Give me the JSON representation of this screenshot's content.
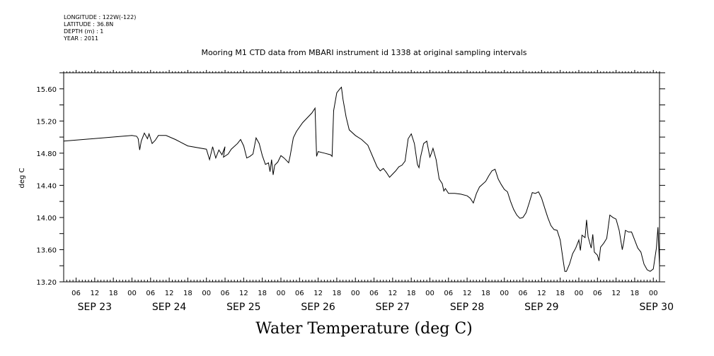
{
  "header": {
    "longitude": "LONGITUDE : 122W(-122)",
    "latitude": "LATITUDE : 36.8N",
    "depth": "DEPTH (m) : 1",
    "year": "YEAR : 2011"
  },
  "footer": {
    "label": "Water Temperature (deg C)"
  },
  "chart_data": {
    "type": "line",
    "title": "Mooring M1 CTD data from MBARI instrument id 1338 at original sampling intervals",
    "xlabel": "",
    "ylabel": "deg C",
    "ylim": [
      13.2,
      15.8
    ],
    "yticks": [
      "13.20",
      "13.60",
      "14.00",
      "14.40",
      "14.80",
      "15.20",
      "15.60"
    ],
    "xlim_hours": [
      0,
      192
    ],
    "x_unit": "hours after 2011-09-23 02:00",
    "hour_ticks": [
      "06",
      "12",
      "18",
      "00",
      "06",
      "12",
      "18",
      "00",
      "06",
      "12",
      "18",
      "00",
      "06",
      "12",
      "18",
      "00",
      "06",
      "12",
      "18",
      "00",
      "06",
      "12",
      "18",
      "00",
      "06",
      "12",
      "18",
      "00",
      "06",
      "12",
      "18",
      "00"
    ],
    "day_labels": [
      {
        "label": "SEP 23",
        "day": 23
      },
      {
        "label": "SEP 24",
        "day": 24
      },
      {
        "label": "SEP 25",
        "day": 25
      },
      {
        "label": "SEP 26",
        "day": 26
      },
      {
        "label": "SEP 27",
        "day": 27
      },
      {
        "label": "SEP 28",
        "day": 28
      },
      {
        "label": "SEP 29",
        "day": 29
      },
      {
        "label": "SEP 30",
        "day": 30
      }
    ],
    "series": [
      {
        "values": [
          [
            0,
            14.95
          ],
          [
            22,
            15.02
          ],
          [
            23.5,
            15.01
          ],
          [
            24,
            14.98
          ],
          [
            24.5,
            14.84
          ],
          [
            25,
            14.95
          ],
          [
            26,
            15.05
          ],
          [
            27,
            14.98
          ],
          [
            27.5,
            15.04
          ],
          [
            28.5,
            14.92
          ],
          [
            29.5,
            14.96
          ],
          [
            30.5,
            15.02
          ],
          [
            33,
            15.02
          ],
          [
            36,
            14.97
          ],
          [
            40,
            14.89
          ],
          [
            46,
            14.85
          ],
          [
            47,
            14.72
          ],
          [
            48,
            14.88
          ],
          [
            49,
            14.74
          ],
          [
            50,
            14.84
          ],
          [
            51,
            14.78
          ],
          [
            52,
            14.88
          ],
          [
            51.5,
            14.75
          ],
          [
            53,
            14.79
          ],
          [
            54,
            14.85
          ],
          [
            56,
            14.92
          ],
          [
            57,
            14.97
          ],
          [
            58,
            14.89
          ],
          [
            59,
            14.74
          ],
          [
            60,
            14.76
          ],
          [
            61,
            14.79
          ],
          [
            62,
            14.99
          ],
          [
            63,
            14.92
          ],
          [
            64,
            14.77
          ],
          [
            65,
            14.66
          ],
          [
            66,
            14.68
          ],
          [
            66.5,
            14.57
          ],
          [
            67,
            14.72
          ],
          [
            67.5,
            14.53
          ],
          [
            68,
            14.65
          ],
          [
            69,
            14.69
          ],
          [
            70,
            14.77
          ],
          [
            71,
            14.74
          ],
          [
            72,
            14.7
          ],
          [
            72.5,
            14.68
          ],
          [
            73,
            14.77
          ],
          [
            74,
            14.99
          ],
          [
            75,
            15.07
          ],
          [
            77,
            15.18
          ],
          [
            78,
            15.22
          ],
          [
            80,
            15.3
          ],
          [
            81,
            15.36
          ],
          [
            81.5,
            14.76
          ],
          [
            82,
            14.82
          ],
          [
            84,
            14.8
          ],
          [
            86,
            14.78
          ],
          [
            86.5,
            14.76
          ],
          [
            87,
            15.33
          ],
          [
            88,
            15.55
          ],
          [
            89,
            15.6
          ],
          [
            89.5,
            15.62
          ],
          [
            90,
            15.47
          ],
          [
            91,
            15.25
          ],
          [
            92,
            15.09
          ],
          [
            94,
            15.02
          ],
          [
            96,
            14.97
          ],
          [
            98,
            14.9
          ],
          [
            100,
            14.72
          ],
          [
            101,
            14.63
          ],
          [
            102,
            14.58
          ],
          [
            103,
            14.61
          ],
          [
            104,
            14.56
          ],
          [
            105,
            14.5
          ],
          [
            106,
            14.54
          ],
          [
            107,
            14.58
          ],
          [
            108,
            14.63
          ],
          [
            109,
            14.65
          ],
          [
            110,
            14.7
          ],
          [
            111,
            14.98
          ],
          [
            112,
            15.04
          ],
          [
            113,
            14.92
          ],
          [
            114,
            14.66
          ],
          [
            114.5,
            14.62
          ],
          [
            115,
            14.75
          ],
          [
            116,
            14.92
          ],
          [
            117,
            14.95
          ],
          [
            118,
            14.75
          ],
          [
            118.5,
            14.8
          ],
          [
            119,
            14.86
          ],
          [
            120,
            14.72
          ],
          [
            121,
            14.48
          ],
          [
            122,
            14.42
          ],
          [
            122.5,
            14.33
          ],
          [
            123,
            14.36
          ],
          [
            124,
            14.3
          ],
          [
            126,
            14.3
          ],
          [
            128,
            14.29
          ],
          [
            130,
            14.27
          ],
          [
            131,
            14.24
          ],
          [
            132,
            14.18
          ],
          [
            133,
            14.3
          ],
          [
            134,
            14.38
          ],
          [
            136,
            14.45
          ],
          [
            137,
            14.52
          ],
          [
            138,
            14.58
          ],
          [
            139,
            14.6
          ],
          [
            140,
            14.48
          ],
          [
            141,
            14.41
          ],
          [
            142,
            14.35
          ],
          [
            143,
            14.32
          ],
          [
            144,
            14.2
          ],
          [
            145,
            14.1
          ],
          [
            146,
            14.03
          ],
          [
            147,
            13.99
          ],
          [
            148,
            14.0
          ],
          [
            149,
            14.06
          ],
          [
            150,
            14.18
          ],
          [
            151,
            14.31
          ],
          [
            152,
            14.3
          ],
          [
            153,
            14.32
          ],
          [
            154,
            14.24
          ],
          [
            155,
            14.12
          ],
          [
            156,
            14.0
          ],
          [
            157,
            13.9
          ],
          [
            158,
            13.85
          ],
          [
            159,
            13.84
          ],
          [
            160,
            13.72
          ],
          [
            161,
            13.45
          ],
          [
            161.5,
            13.33
          ],
          [
            162,
            13.33
          ],
          [
            163,
            13.42
          ],
          [
            164,
            13.55
          ],
          [
            165,
            13.62
          ],
          [
            166,
            13.72
          ],
          [
            166.5,
            13.59
          ],
          [
            167,
            13.78
          ],
          [
            168,
            13.75
          ],
          [
            168.5,
            13.97
          ],
          [
            169,
            13.76
          ],
          [
            170,
            13.62
          ],
          [
            170.5,
            13.79
          ],
          [
            171,
            13.57
          ],
          [
            172,
            13.53
          ],
          [
            172.5,
            13.46
          ],
          [
            173,
            13.63
          ],
          [
            174,
            13.68
          ],
          [
            175,
            13.74
          ],
          [
            176,
            14.03
          ],
          [
            177,
            14.0
          ],
          [
            178,
            13.98
          ],
          [
            179,
            13.84
          ],
          [
            180,
            13.6
          ],
          [
            180.5,
            13.7
          ],
          [
            181,
            13.84
          ],
          [
            182,
            13.82
          ],
          [
            183,
            13.82
          ],
          [
            184,
            13.72
          ],
          [
            185,
            13.62
          ],
          [
            186,
            13.57
          ],
          [
            187,
            13.42
          ],
          [
            188,
            13.35
          ],
          [
            189,
            13.33
          ],
          [
            190,
            13.36
          ],
          [
            191,
            13.62
          ],
          [
            191.5,
            13.88
          ],
          [
            192,
            13.4
          ]
        ]
      }
    ]
  }
}
